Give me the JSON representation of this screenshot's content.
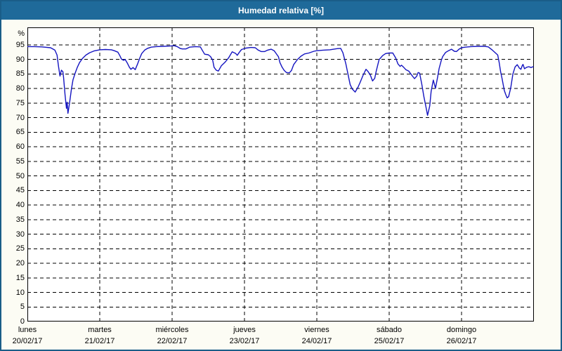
{
  "theme": {
    "header_bg": "#1f6a9a",
    "frame_border": "#1a5d88",
    "page_bg": "#fcfcf4",
    "plot_bg": "#ffffff",
    "line_color": "#1414c0",
    "grid_color": "#000000",
    "text_color": "#000000"
  },
  "chart_data": {
    "type": "line",
    "title": "Humedad relativa [%]",
    "ylabel": "%",
    "xlabel": "",
    "grid": "dashed-black-on-white",
    "legend": "none",
    "ylim": [
      0,
      101
    ],
    "y_ticks": [
      0,
      5,
      10,
      15,
      20,
      25,
      30,
      35,
      40,
      45,
      50,
      55,
      60,
      65,
      70,
      75,
      80,
      85,
      90,
      95
    ],
    "x_range_days": [
      0,
      7
    ],
    "x_ticks": [
      {
        "label": "lunes",
        "date": "20/02/17"
      },
      {
        "label": "martes",
        "date": "21/02/17"
      },
      {
        "label": "miércoles",
        "date": "22/02/17"
      },
      {
        "label": "jueves",
        "date": "23/02/17"
      },
      {
        "label": "viernes",
        "date": "24/02/17"
      },
      {
        "label": "sábado",
        "date": "25/02/17"
      },
      {
        "label": "domingo",
        "date": "26/02/17"
      }
    ],
    "series": [
      {
        "name": "Humedad relativa [%]",
        "points": [
          [
            0.0,
            94.4
          ],
          [
            0.1,
            94.4
          ],
          [
            0.2,
            94.3
          ],
          [
            0.32,
            94.0
          ],
          [
            0.38,
            93.2
          ],
          [
            0.41,
            91.5
          ],
          [
            0.43,
            87.6
          ],
          [
            0.45,
            84.3
          ],
          [
            0.47,
            86.3
          ],
          [
            0.49,
            85.8
          ],
          [
            0.5,
            83.8
          ],
          [
            0.52,
            77.8
          ],
          [
            0.54,
            73.2
          ],
          [
            0.55,
            75.3
          ],
          [
            0.56,
            71.5
          ],
          [
            0.58,
            74.5
          ],
          [
            0.61,
            80.0
          ],
          [
            0.63,
            83.0
          ],
          [
            0.66,
            85.3
          ],
          [
            0.69,
            87.3
          ],
          [
            0.72,
            88.9
          ],
          [
            0.76,
            90.3
          ],
          [
            0.81,
            91.5
          ],
          [
            0.86,
            92.3
          ],
          [
            0.92,
            92.9
          ],
          [
            1.0,
            93.3
          ],
          [
            1.08,
            93.4
          ],
          [
            1.16,
            93.3
          ],
          [
            1.2,
            93.0
          ],
          [
            1.25,
            92.5
          ],
          [
            1.28,
            91.2
          ],
          [
            1.3,
            90.1
          ],
          [
            1.33,
            89.7
          ],
          [
            1.35,
            90.0
          ],
          [
            1.38,
            88.8
          ],
          [
            1.41,
            87.3
          ],
          [
            1.43,
            86.6
          ],
          [
            1.46,
            87.2
          ],
          [
            1.49,
            86.5
          ],
          [
            1.52,
            88.3
          ],
          [
            1.55,
            90.3
          ],
          [
            1.58,
            92.0
          ],
          [
            1.62,
            93.2
          ],
          [
            1.66,
            93.8
          ],
          [
            1.71,
            94.2
          ],
          [
            1.78,
            94.4
          ],
          [
            1.87,
            94.5
          ],
          [
            1.97,
            94.6
          ],
          [
            2.03,
            94.7
          ],
          [
            2.07,
            94.4
          ],
          [
            2.11,
            93.8
          ],
          [
            2.14,
            93.6
          ],
          [
            2.19,
            93.6
          ],
          [
            2.24,
            94.2
          ],
          [
            2.32,
            94.4
          ],
          [
            2.39,
            94.3
          ],
          [
            2.42,
            93.0
          ],
          [
            2.45,
            91.8
          ],
          [
            2.5,
            91.6
          ],
          [
            2.53,
            91.0
          ],
          [
            2.56,
            89.8
          ],
          [
            2.58,
            87.3
          ],
          [
            2.61,
            86.3
          ],
          [
            2.64,
            86.0
          ],
          [
            2.68,
            87.8
          ],
          [
            2.73,
            89.0
          ],
          [
            2.78,
            90.5
          ],
          [
            2.83,
            92.6
          ],
          [
            2.88,
            92.0
          ],
          [
            2.9,
            91.4
          ],
          [
            2.93,
            92.5
          ],
          [
            2.96,
            93.4
          ],
          [
            3.02,
            93.9
          ],
          [
            3.09,
            94.1
          ],
          [
            3.15,
            94.0
          ],
          [
            3.19,
            93.2
          ],
          [
            3.23,
            92.7
          ],
          [
            3.28,
            92.7
          ],
          [
            3.32,
            93.2
          ],
          [
            3.37,
            93.5
          ],
          [
            3.41,
            93.0
          ],
          [
            3.43,
            92.3
          ],
          [
            3.47,
            90.9
          ],
          [
            3.49,
            88.9
          ],
          [
            3.52,
            87.3
          ],
          [
            3.55,
            86.2
          ],
          [
            3.58,
            85.5
          ],
          [
            3.62,
            85.4
          ],
          [
            3.65,
            86.2
          ],
          [
            3.68,
            88.2
          ],
          [
            3.73,
            89.9
          ],
          [
            3.78,
            91.1
          ],
          [
            3.83,
            91.9
          ],
          [
            3.89,
            92.2
          ],
          [
            3.96,
            92.8
          ],
          [
            4.0,
            93.0
          ],
          [
            4.09,
            93.2
          ],
          [
            4.18,
            93.3
          ],
          [
            4.28,
            93.7
          ],
          [
            4.33,
            93.8
          ],
          [
            4.36,
            92.3
          ],
          [
            4.4,
            88.6
          ],
          [
            4.43,
            85.0
          ],
          [
            4.46,
            81.4
          ],
          [
            4.49,
            79.8
          ],
          [
            4.53,
            78.8
          ],
          [
            4.57,
            80.5
          ],
          [
            4.6,
            82.2
          ],
          [
            4.64,
            84.6
          ],
          [
            4.68,
            86.6
          ],
          [
            4.71,
            85.8
          ],
          [
            4.74,
            84.6
          ],
          [
            4.77,
            82.6
          ],
          [
            4.8,
            83.5
          ],
          [
            4.82,
            85.9
          ],
          [
            4.86,
            89.9
          ],
          [
            4.91,
            91.3
          ],
          [
            4.95,
            92.0
          ],
          [
            5.0,
            92.2
          ],
          [
            5.05,
            92.2
          ],
          [
            5.09,
            90.5
          ],
          [
            5.12,
            88.5
          ],
          [
            5.15,
            87.6
          ],
          [
            5.17,
            88.0
          ],
          [
            5.2,
            87.3
          ],
          [
            5.23,
            86.5
          ],
          [
            5.27,
            86.0
          ],
          [
            5.3,
            85.0
          ],
          [
            5.33,
            84.0
          ],
          [
            5.35,
            83.4
          ],
          [
            5.38,
            84.2
          ],
          [
            5.4,
            85.5
          ],
          [
            5.42,
            85.3
          ],
          [
            5.45,
            81.5
          ],
          [
            5.48,
            77.2
          ],
          [
            5.51,
            73.5
          ],
          [
            5.53,
            70.8
          ],
          [
            5.56,
            74.0
          ],
          [
            5.58,
            79.0
          ],
          [
            5.6,
            81.7
          ],
          [
            5.61,
            82.9
          ],
          [
            5.64,
            80.1
          ],
          [
            5.67,
            84.0
          ],
          [
            5.69,
            86.9
          ],
          [
            5.72,
            89.7
          ],
          [
            5.74,
            91.0
          ],
          [
            5.78,
            92.4
          ],
          [
            5.82,
            93.0
          ],
          [
            5.86,
            93.5
          ],
          [
            5.9,
            92.8
          ],
          [
            5.93,
            92.7
          ],
          [
            5.97,
            93.6
          ],
          [
            6.0,
            94.0
          ],
          [
            6.05,
            94.2
          ],
          [
            6.13,
            94.4
          ],
          [
            6.22,
            94.5
          ],
          [
            6.32,
            94.5
          ],
          [
            6.37,
            94.3
          ],
          [
            6.42,
            93.3
          ],
          [
            6.47,
            92.2
          ],
          [
            6.5,
            91.5
          ],
          [
            6.52,
            88.9
          ],
          [
            6.54,
            85.8
          ],
          [
            6.56,
            83.4
          ],
          [
            6.59,
            79.4
          ],
          [
            6.61,
            78.0
          ],
          [
            6.63,
            76.8
          ],
          [
            6.65,
            77.2
          ],
          [
            6.68,
            80.2
          ],
          [
            6.71,
            85.0
          ],
          [
            6.74,
            87.4
          ],
          [
            6.77,
            88.2
          ],
          [
            6.8,
            87.0
          ],
          [
            6.82,
            86.6
          ],
          [
            6.84,
            87.9
          ],
          [
            6.85,
            88.3
          ],
          [
            6.87,
            86.8
          ],
          [
            6.9,
            87.3
          ],
          [
            6.93,
            87.5
          ],
          [
            6.96,
            87.2
          ],
          [
            6.99,
            87.5
          ]
        ]
      }
    ]
  }
}
